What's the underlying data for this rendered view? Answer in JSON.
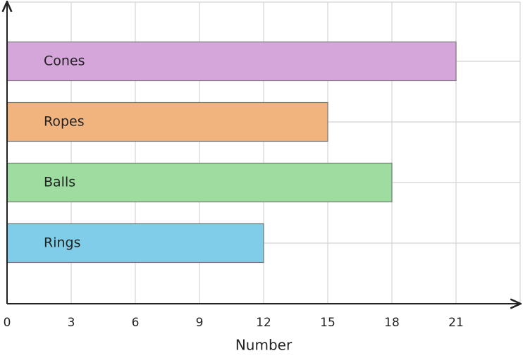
{
  "chart_data": {
    "type": "bar",
    "orientation": "horizontal",
    "categories": [
      "Rings",
      "Balls",
      "Ropes",
      "Cones"
    ],
    "values": [
      12,
      18,
      15,
      21
    ],
    "colors": [
      "#7fcde8",
      "#9edca0",
      "#f2b47e",
      "#d4a6da"
    ],
    "xlabel": "Number",
    "xlim": [
      0,
      24
    ],
    "xticks": [
      0,
      3,
      6,
      9,
      12,
      15,
      18,
      21
    ],
    "grid": true
  }
}
